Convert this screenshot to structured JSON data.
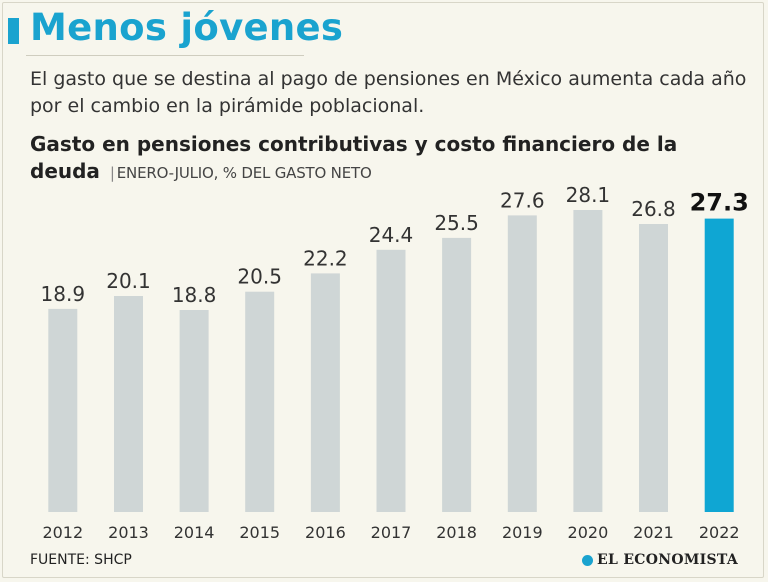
{
  "header": {
    "title": "Menos jóvenes",
    "subtitle": "El gasto que se destina al pago de pensiones en México aumenta cada año por el cambio en la pirámide poblacional."
  },
  "chart_data": {
    "type": "bar",
    "title": "Gasto en pensiones contributivas y costo financiero de la deuda",
    "unit_label": "ENERO-JULIO, % DEL GASTO NETO",
    "categories": [
      "2012",
      "2013",
      "2014",
      "2015",
      "2016",
      "2017",
      "2018",
      "2019",
      "2020",
      "2021",
      "2022"
    ],
    "values": [
      18.9,
      20.1,
      18.8,
      20.5,
      22.2,
      24.4,
      25.5,
      27.6,
      28.1,
      26.8,
      27.3
    ],
    "value_labels": [
      "18.9",
      "20.1",
      "18.8",
      "20.5",
      "22.2",
      "24.4",
      "25.5",
      "27.6",
      "28.1",
      "26.8",
      "27.3"
    ],
    "highlight_index": 10,
    "ylim": [
      0,
      28.1
    ],
    "xlabel": "",
    "ylabel": "",
    "bar_color": "#cfd6d6",
    "highlight_color": "#0fa6d3"
  },
  "footer": {
    "source": "FUENTE: SHCP",
    "brand": "EL ECONOMISTA"
  },
  "colors": {
    "accent": "#1aa3cf",
    "background": "#f7f6ed"
  }
}
